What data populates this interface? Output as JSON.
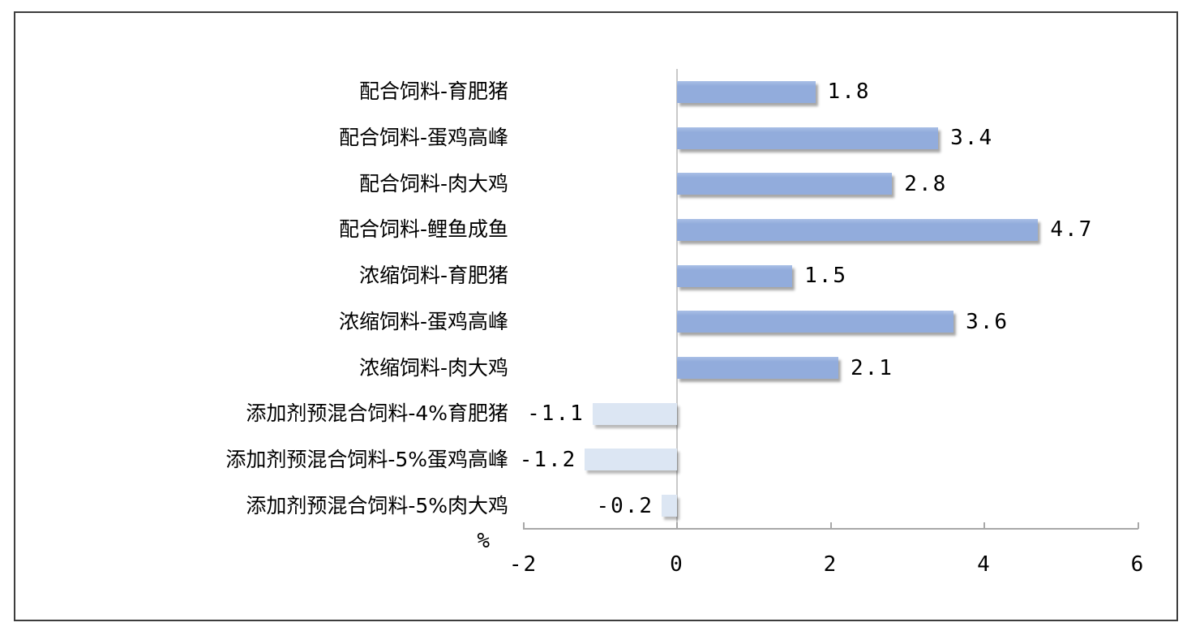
{
  "chart_data": {
    "type": "bar",
    "orientation": "horizontal",
    "title": "",
    "unit_label": "%",
    "categories": [
      "配合饲料-育肥猪",
      "配合饲料-蛋鸡高峰",
      "配合饲料-肉大鸡",
      "配合饲料-鲤鱼成鱼",
      "浓缩饲料-育肥猪",
      "浓缩饲料-蛋鸡高峰",
      "浓缩饲料-肉大鸡",
      "添加剂预混合饲料-4%育肥猪",
      "添加剂预混合饲料-5%蛋鸡高峰",
      "添加剂预混合饲料-5%肉大鸡"
    ],
    "values": [
      1.8,
      3.4,
      2.8,
      4.7,
      1.5,
      3.6,
      2.1,
      -1.1,
      -1.2,
      -0.2
    ],
    "value_labels": [
      "1.8",
      "3.4",
      "2.8",
      "4.7",
      "1.5",
      "3.6",
      "2.1",
      "-1.1",
      "-1.2",
      "-0.2"
    ],
    "x_ticks": [
      "-2",
      "0",
      "2",
      "4",
      "6"
    ],
    "x_tick_values": [
      -2,
      0,
      2,
      4,
      6
    ],
    "xlim": [
      -2,
      6
    ],
    "grid": false,
    "legend": "none",
    "data_label_position": "outside-end",
    "colors": {
      "positive_bar": "#92ACDC",
      "negative_bar": "#DCE6F3",
      "axis_line": "#A8A8A8",
      "zero_line": "#C9C9C9",
      "text": "#000000",
      "frame_border": "#3D3D3D",
      "background": "#FFFFFF"
    }
  }
}
